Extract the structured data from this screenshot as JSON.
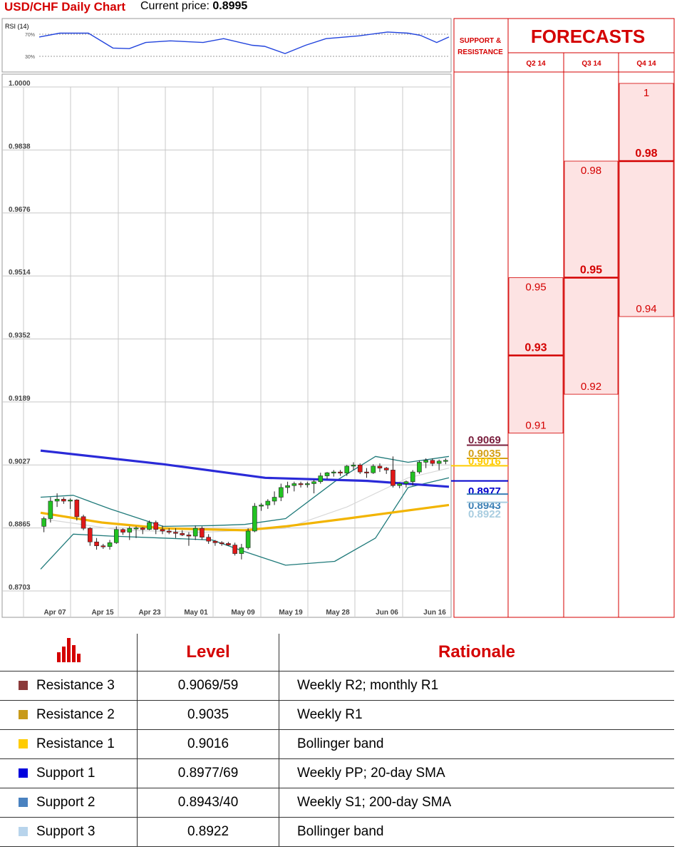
{
  "header": {
    "title": "USD/CHF Daily Chart",
    "current_price_label": "Current price:",
    "current_price": "0.8995"
  },
  "rsi_panel": {
    "label": "RSI (14)",
    "level_70": "70%",
    "level_30": "30%"
  },
  "forecasts": {
    "title": "FORECASTS",
    "support_resistance_label_1": "SUPPORT &",
    "support_resistance_label_2": "RESISTANCE",
    "quarters": [
      {
        "label": "Q2 14",
        "low": "0.91",
        "mid": "0.93",
        "high": "0.95",
        "low_value": 0.91,
        "mid_value": 0.93,
        "high_value": 0.95
      },
      {
        "label": "Q3 14",
        "low": "0.92",
        "mid": "0.95",
        "high": "0.98",
        "low_value": 0.92,
        "mid_value": 0.95,
        "high_value": 0.98
      },
      {
        "label": "Q4 14",
        "low": "0.94",
        "mid": "0.98",
        "high": "1",
        "low_value": 0.94,
        "mid_value": 0.98,
        "high_value": 1.0
      }
    ]
  },
  "sr_markers": [
    {
      "label": "0.9069",
      "value": 0.9069,
      "color": "#7a1f3d"
    },
    {
      "label": "0.9035",
      "value": 0.9035,
      "color": "#d4a017"
    },
    {
      "label": "0.9016",
      "value": 0.9016,
      "color": "#ffcc00"
    },
    {
      "label": "0.8977",
      "value": 0.8977,
      "color": "#0000cc"
    },
    {
      "label": "0.8943",
      "value": 0.8943,
      "color": "#3b7fb5"
    },
    {
      "label": "0.8922",
      "value": 0.8922,
      "color": "#a9cde0"
    }
  ],
  "chart_data": {
    "type": "candlestick",
    "title": "USD/CHF Daily Chart",
    "y_ticks": [
      "1.0000",
      "0.9838",
      "0.9676",
      "0.9514",
      "0.9352",
      "0.9189",
      "0.9027",
      "0.8865",
      "0.8703"
    ],
    "ylim": [
      0.8703,
      1.0
    ],
    "x_ticks": [
      "Apr 07",
      "Apr 15",
      "Apr 23",
      "May 01",
      "May 09",
      "May 19",
      "May 28",
      "Jun 06",
      "Jun 16"
    ],
    "grid": true,
    "candles": [
      [
        0.886,
        0.8885,
        0.8845,
        0.888
      ],
      [
        0.888,
        0.8935,
        0.887,
        0.8925
      ],
      [
        0.8925,
        0.8945,
        0.891,
        0.893
      ],
      [
        0.893,
        0.8935,
        0.8918,
        0.8925
      ],
      [
        0.8925,
        0.8932,
        0.8905,
        0.8928
      ],
      [
        0.8928,
        0.893,
        0.8875,
        0.8885
      ],
      [
        0.8885,
        0.889,
        0.885,
        0.8855
      ],
      [
        0.8855,
        0.8858,
        0.881,
        0.882
      ],
      [
        0.882,
        0.883,
        0.88,
        0.881
      ],
      [
        0.881,
        0.8815,
        0.8802,
        0.8808
      ],
      [
        0.8808,
        0.8825,
        0.88,
        0.8818
      ],
      [
        0.8818,
        0.886,
        0.8815,
        0.8852
      ],
      [
        0.8852,
        0.8855,
        0.8838,
        0.8845
      ],
      [
        0.8845,
        0.886,
        0.8825,
        0.8855
      ],
      [
        0.8855,
        0.886,
        0.883,
        0.8856
      ],
      [
        0.8856,
        0.8858,
        0.884,
        0.8852
      ],
      [
        0.8852,
        0.8875,
        0.885,
        0.887
      ],
      [
        0.887,
        0.8875,
        0.884,
        0.8852
      ],
      [
        0.8852,
        0.8862,
        0.884,
        0.8848
      ],
      [
        0.8848,
        0.8855,
        0.884,
        0.8845
      ],
      [
        0.8845,
        0.8855,
        0.883,
        0.8842
      ],
      [
        0.8842,
        0.885,
        0.8835,
        0.8838
      ],
      [
        0.8838,
        0.8845,
        0.881,
        0.8835
      ],
      [
        0.8835,
        0.8862,
        0.8825,
        0.8855
      ],
      [
        0.8855,
        0.886,
        0.8825,
        0.8832
      ],
      [
        0.8832,
        0.884,
        0.8815,
        0.8822
      ],
      [
        0.8822,
        0.8825,
        0.881,
        0.8818
      ],
      [
        0.8818,
        0.8822,
        0.881,
        0.8816
      ],
      [
        0.8816,
        0.882,
        0.881,
        0.8812
      ],
      [
        0.8812,
        0.8818,
        0.8785,
        0.879
      ],
      [
        0.879,
        0.8815,
        0.8775,
        0.8805
      ],
      [
        0.8805,
        0.8855,
        0.88,
        0.8848
      ],
      [
        0.8848,
        0.892,
        0.8845,
        0.8912
      ],
      [
        0.8912,
        0.892,
        0.89,
        0.8915
      ],
      [
        0.8915,
        0.893,
        0.8905,
        0.8925
      ],
      [
        0.8925,
        0.895,
        0.8915,
        0.8935
      ],
      [
        0.8935,
        0.897,
        0.8925,
        0.896
      ],
      [
        0.896,
        0.8975,
        0.8945,
        0.8965
      ],
      [
        0.8965,
        0.8975,
        0.895,
        0.897
      ],
      [
        0.897,
        0.8975,
        0.896,
        0.8968
      ],
      [
        0.8968,
        0.8975,
        0.896,
        0.897
      ],
      [
        0.897,
        0.898,
        0.8945,
        0.8975
      ],
      [
        0.8975,
        0.8998,
        0.897,
        0.899
      ],
      [
        0.899,
        0.9,
        0.8982,
        0.8998
      ],
      [
        0.8998,
        0.9005,
        0.8988,
        0.9
      ],
      [
        0.9,
        0.9005,
        0.899,
        0.8997
      ],
      [
        0.8997,
        0.9018,
        0.899,
        0.9015
      ],
      [
        0.9015,
        0.9025,
        0.9005,
        0.9018
      ],
      [
        0.9018,
        0.9022,
        0.8995,
        0.9
      ],
      [
        0.9,
        0.901,
        0.8985,
        0.8998
      ],
      [
        0.8998,
        0.902,
        0.8995,
        0.9015
      ],
      [
        0.9015,
        0.9022,
        0.9,
        0.901
      ],
      [
        0.901,
        0.9013,
        0.8995,
        0.9005
      ],
      [
        0.9005,
        0.904,
        0.896,
        0.8965
      ],
      [
        0.8965,
        0.8972,
        0.8958,
        0.897
      ],
      [
        0.897,
        0.8978,
        0.896,
        0.8975
      ],
      [
        0.8975,
        0.9005,
        0.8965,
        0.9
      ],
      [
        0.9,
        0.903,
        0.8995,
        0.9025
      ],
      [
        0.9025,
        0.9035,
        0.901,
        0.903
      ],
      [
        0.903,
        0.9035,
        0.9015,
        0.9022
      ],
      [
        0.9022,
        0.9032,
        0.9005,
        0.9028
      ],
      [
        0.9028,
        0.9035,
        0.902,
        0.903
      ]
    ],
    "sma200": [
      [
        0,
        0.9055
      ],
      [
        0.3,
        0.902
      ],
      [
        0.55,
        0.8985
      ],
      [
        0.8,
        0.8977
      ],
      [
        1,
        0.8962
      ]
    ],
    "sma20": [
      [
        0,
        0.8895
      ],
      [
        0.15,
        0.887
      ],
      [
        0.3,
        0.8855
      ],
      [
        0.5,
        0.885
      ],
      [
        0.6,
        0.886
      ],
      [
        0.75,
        0.888
      ],
      [
        1,
        0.8915
      ]
    ],
    "bb_upper": [
      [
        0,
        0.8935
      ],
      [
        0.08,
        0.894
      ],
      [
        0.17,
        0.8905
      ],
      [
        0.3,
        0.886
      ],
      [
        0.42,
        0.8862
      ],
      [
        0.5,
        0.8865
      ],
      [
        0.6,
        0.888
      ],
      [
        0.72,
        0.8975
      ],
      [
        0.82,
        0.904
      ],
      [
        0.9,
        0.9025
      ],
      [
        1,
        0.904
      ]
    ],
    "bb_lower": [
      [
        0,
        0.875
      ],
      [
        0.08,
        0.884
      ],
      [
        0.17,
        0.8835
      ],
      [
        0.3,
        0.883
      ],
      [
        0.42,
        0.8825
      ],
      [
        0.5,
        0.8795
      ],
      [
        0.6,
        0.876
      ],
      [
        0.72,
        0.877
      ],
      [
        0.82,
        0.883
      ],
      [
        0.9,
        0.896
      ],
      [
        1,
        0.8985
      ]
    ],
    "bb_mid": [
      [
        0,
        0.888
      ],
      [
        0.2,
        0.885
      ],
      [
        0.4,
        0.8845
      ],
      [
        0.6,
        0.8855
      ],
      [
        0.75,
        0.891
      ],
      [
        0.9,
        0.8985
      ],
      [
        1,
        0.901
      ]
    ],
    "rsi": [
      [
        0,
        65
      ],
      [
        0.05,
        72
      ],
      [
        0.12,
        72
      ],
      [
        0.18,
        45
      ],
      [
        0.22,
        44
      ],
      [
        0.26,
        55
      ],
      [
        0.32,
        58
      ],
      [
        0.4,
        55
      ],
      [
        0.45,
        62
      ],
      [
        0.52,
        50
      ],
      [
        0.55,
        48
      ],
      [
        0.6,
        35
      ],
      [
        0.65,
        50
      ],
      [
        0.7,
        62
      ],
      [
        0.78,
        67
      ],
      [
        0.85,
        74
      ],
      [
        0.9,
        72
      ],
      [
        0.93,
        68
      ],
      [
        0.97,
        55
      ],
      [
        1,
        65
      ]
    ]
  },
  "levels_table": {
    "headers": [
      "Level",
      "Rationale"
    ],
    "rows": [
      {
        "name": "Resistance 3",
        "level": "0.9069/59",
        "rationale": "Weekly R2; monthly R1",
        "color": "#8b3a3a"
      },
      {
        "name": "Resistance 2",
        "level": "0.9035",
        "rationale": "Weekly R1",
        "color": "#c89a1a"
      },
      {
        "name": "Resistance 1",
        "level": "0.9016",
        "rationale": "Bollinger band",
        "color": "#ffcc00"
      },
      {
        "name": "Support 1",
        "level": "0.8977/69",
        "rationale": "Weekly PP; 20-day SMA",
        "color": "#0000dd"
      },
      {
        "name": "Support 2",
        "level": "0.8943/40",
        "rationale": "Weekly S1; 200-day SMA",
        "color": "#4a82c0"
      },
      {
        "name": "Support 3",
        "level": "0.8922",
        "rationale": "Bollinger band",
        "color": "#b8d4ec"
      }
    ]
  }
}
